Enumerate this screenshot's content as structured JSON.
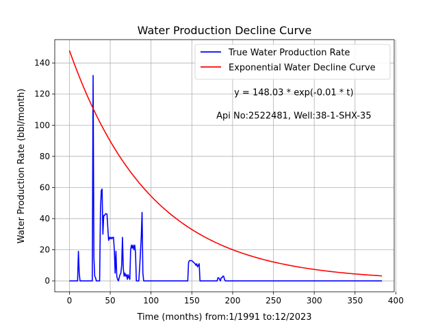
{
  "chart_data": {
    "type": "line",
    "title": "Water Production Decline Curve",
    "xlabel": "Time (months) from:1/1991 to:12/2023",
    "ylabel": "Water Production Rate (bbl/month)",
    "xlim": [
      -18,
      398
    ],
    "ylim": [
      -7,
      155
    ],
    "xticks": [
      0,
      50,
      100,
      150,
      200,
      250,
      300,
      350,
      400
    ],
    "yticks": [
      0,
      20,
      40,
      60,
      80,
      100,
      120,
      140
    ],
    "grid": true,
    "legend_position": "top-right",
    "annotations": [
      {
        "text": "y = 148.03 * exp(-0.01 * t)",
        "x": 275,
        "y": 121
      },
      {
        "text": "Api No:2522481, Well:38-1-SHX-35",
        "x": 275,
        "y": 106
      }
    ],
    "series": [
      {
        "name": "True Water Production Rate",
        "color": "#0000ff",
        "x": [
          0,
          10,
          11,
          12,
          13,
          28,
          29,
          30,
          31,
          32,
          33,
          37,
          38,
          39,
          40,
          41,
          42,
          43,
          44,
          46,
          48,
          49,
          50,
          51,
          52,
          53,
          54,
          55,
          56,
          57,
          58,
          59,
          60,
          61,
          62,
          63,
          64,
          65,
          66,
          67,
          68,
          69,
          70,
          71,
          72,
          73,
          74,
          75,
          76,
          77,
          78,
          79,
          80,
          81,
          82,
          84,
          85,
          86,
          88,
          89,
          90,
          91,
          92,
          145,
          146,
          147,
          148,
          150,
          152,
          154,
          155,
          156,
          157,
          158,
          159,
          160,
          161,
          162,
          181,
          182,
          183,
          184,
          185,
          186,
          187,
          188,
          189,
          190,
          191,
          383
        ],
        "values": [
          0,
          0,
          19,
          5,
          0,
          0,
          132,
          15,
          3,
          2,
          0,
          0,
          45,
          58,
          59,
          30,
          42,
          42,
          43,
          43,
          26,
          28,
          27,
          28,
          27,
          28,
          28,
          20,
          5,
          19,
          3,
          1,
          0,
          2,
          4,
          5,
          10,
          28,
          8,
          3,
          5,
          3,
          4,
          1,
          4,
          2,
          1,
          20,
          23,
          21,
          23,
          20,
          23,
          18,
          0,
          0,
          0,
          8,
          28,
          44,
          5,
          0,
          0,
          0,
          12,
          13,
          13,
          13,
          12,
          11,
          10,
          11,
          9,
          10,
          11,
          0,
          0,
          0,
          0,
          2,
          2,
          1,
          0,
          2,
          2,
          3,
          3,
          1,
          0,
          0
        ]
      },
      {
        "name": "Exponential Water Decline Curve",
        "color": "#ff0000",
        "function": "148.03 * exp(-0.01 * t)",
        "a": 148.03,
        "b": -0.01,
        "x_start": 0,
        "x_end": 383
      }
    ]
  }
}
